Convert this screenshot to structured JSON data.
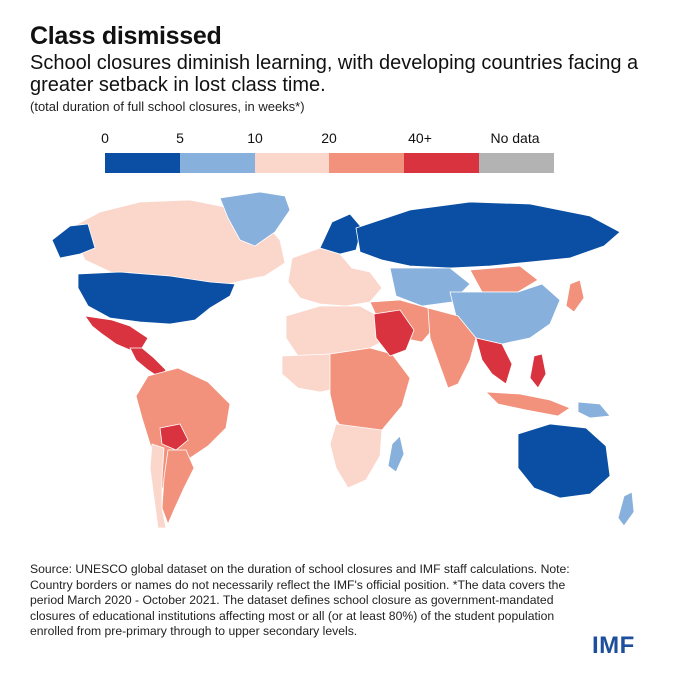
{
  "header": {
    "title": "Class dismissed",
    "subtitle": "School closures diminish learning, with developing countries facing a greater setback in lost class time.",
    "note": "(total duration of full school closures, in weeks*)"
  },
  "legend": {
    "items": [
      {
        "label": "0",
        "color": "#0a4fa3"
      },
      {
        "label": "5",
        "color": "#88b0dc"
      },
      {
        "label": "10",
        "color": "#fbd6cb"
      },
      {
        "label": "20",
        "color": "#f2927c"
      },
      {
        "label": "40+",
        "color": "#d9333f"
      },
      {
        "label": "No data",
        "color": "#b3b3b3"
      }
    ]
  },
  "map_regions": [
    {
      "name": "north-america",
      "category": "0"
    },
    {
      "name": "alaska",
      "category": "0"
    },
    {
      "name": "canada",
      "category": "10"
    },
    {
      "name": "greenland",
      "category": "5"
    },
    {
      "name": "mexico",
      "category": "40+"
    },
    {
      "name": "central-america",
      "category": "40+"
    },
    {
      "name": "south-america",
      "category": "20"
    },
    {
      "name": "bolivia",
      "category": "40+"
    },
    {
      "name": "argentina",
      "category": "20"
    },
    {
      "name": "chile",
      "category": "10"
    },
    {
      "name": "europe",
      "category": "10"
    },
    {
      "name": "scandinavia",
      "category": "0"
    },
    {
      "name": "russia",
      "category": "0"
    },
    {
      "name": "kazakhstan-region",
      "category": "5"
    },
    {
      "name": "mongolia",
      "category": "20"
    },
    {
      "name": "china",
      "category": "5"
    },
    {
      "name": "middle-east",
      "category": "20"
    },
    {
      "name": "saudi-arabia",
      "category": "40+"
    },
    {
      "name": "south-asia",
      "category": "20"
    },
    {
      "name": "southeast-asia",
      "category": "40+"
    },
    {
      "name": "north-africa",
      "category": "10"
    },
    {
      "name": "west-africa",
      "category": "10"
    },
    {
      "name": "central-africa",
      "category": "20"
    },
    {
      "name": "southern-africa",
      "category": "10"
    },
    {
      "name": "madagascar",
      "category": "5"
    },
    {
      "name": "philippines",
      "category": "40+"
    },
    {
      "name": "japan",
      "category": "20"
    },
    {
      "name": "indonesia",
      "category": "20"
    },
    {
      "name": "australia",
      "category": "0"
    },
    {
      "name": "new-zealand",
      "category": "5"
    },
    {
      "name": "papua",
      "category": "5"
    }
  ],
  "footer": {
    "source": "Source: UNESCO global dataset on the duration of school closures and IMF staff calculations. Note: Country borders or names do not necessarily reflect the IMF's official position. *The data covers the period March 2020 - October 2021. The dataset defines school closure as government-mandated closures of educational institutions affecting most or all (or at least 80%) of the student population enrolled from pre-primary through to upper secondary levels.",
    "logo": "IMF"
  }
}
